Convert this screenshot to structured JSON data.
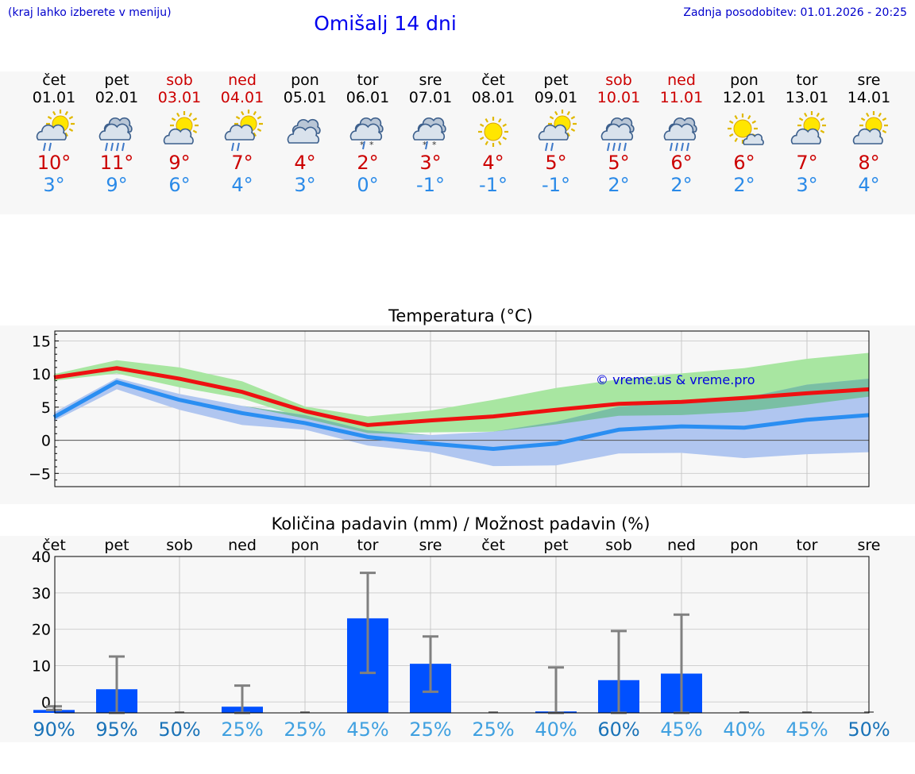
{
  "header": {
    "hint": "(kraj lahko izberete v meniju)",
    "title": "Omišalj 14 dni",
    "updated": "Zadnja posodobitev: 01.01.2026 - 20:25"
  },
  "colors": {
    "weekday": "#000000",
    "weekend": "#cc0000",
    "tmax": "#cc0000",
    "tmin": "#2a8ae8",
    "max_band": "#a8e6a1",
    "min_band": "#b0c6f0",
    "overlap_band": "#7abfa4",
    "max_line": "#ee1111",
    "min_line": "#2a8ef2",
    "bar": "#0050ff",
    "errorbar": "#808080"
  },
  "days": [
    {
      "name": "čet",
      "date": "01.01",
      "weekend": false,
      "icon": "sun-cloud-rain-icon",
      "tmax": "10°",
      "tmin": "3°"
    },
    {
      "name": "pet",
      "date": "02.01",
      "weekend": false,
      "icon": "cloud-heavy-rain-icon",
      "tmax": "11°",
      "tmin": "9°"
    },
    {
      "name": "sob",
      "date": "03.01",
      "weekend": true,
      "icon": "sun-cloud-icon",
      "tmax": "9°",
      "tmin": "6°"
    },
    {
      "name": "ned",
      "date": "04.01",
      "weekend": true,
      "icon": "sun-cloud-rain-icon",
      "tmax": "7°",
      "tmin": "4°"
    },
    {
      "name": "pon",
      "date": "05.01",
      "weekend": false,
      "icon": "cloudy-icon",
      "tmax": "4°",
      "tmin": "3°"
    },
    {
      "name": "tor",
      "date": "06.01",
      "weekend": false,
      "icon": "cloud-sleet-icon",
      "tmax": "2°",
      "tmin": "0°"
    },
    {
      "name": "sre",
      "date": "07.01",
      "weekend": false,
      "icon": "cloud-sleet-icon",
      "tmax": "3°",
      "tmin": "-1°"
    },
    {
      "name": "čet",
      "date": "08.01",
      "weekend": false,
      "icon": "sun-icon",
      "tmax": "4°",
      "tmin": "-1°"
    },
    {
      "name": "pet",
      "date": "09.01",
      "weekend": false,
      "icon": "sun-cloud-rain-icon",
      "tmax": "5°",
      "tmin": "-1°"
    },
    {
      "name": "sob",
      "date": "10.01",
      "weekend": true,
      "icon": "cloud-heavy-rain-icon",
      "tmax": "5°",
      "tmin": "2°"
    },
    {
      "name": "ned",
      "date": "11.01",
      "weekend": true,
      "icon": "cloud-heavy-rain-icon",
      "tmax": "6°",
      "tmin": "2°"
    },
    {
      "name": "pon",
      "date": "12.01",
      "weekend": false,
      "icon": "sun-small-cloud-icon",
      "tmax": "6°",
      "tmin": "2°"
    },
    {
      "name": "tor",
      "date": "13.01",
      "weekend": false,
      "icon": "sun-cloud-icon",
      "tmax": "7°",
      "tmin": "3°"
    },
    {
      "name": "sre",
      "date": "14.01",
      "weekend": false,
      "icon": "sun-cloud-icon",
      "tmax": "8°",
      "tmin": "4°"
    }
  ],
  "chart_data": [
    {
      "type": "line",
      "title": "Temperatura (°C)",
      "watermark": "© vreme.us & vreme.pro",
      "xlabel": "",
      "ylabel": "",
      "ylim": [
        -7,
        16.5
      ],
      "yticks": [
        15,
        10,
        5,
        0,
        -5
      ],
      "ytick_labels": [
        "15",
        "10",
        "5",
        "0",
        "−5"
      ],
      "grid": true,
      "x": [
        1,
        2,
        3,
        4,
        5,
        6,
        7,
        8,
        9,
        10,
        11,
        12,
        13,
        14
      ],
      "series": [
        {
          "name": "max",
          "values": [
            9.5,
            10.9,
            9.3,
            7.3,
            4.4,
            2.3,
            3.0,
            3.6,
            4.6,
            5.5,
            5.8,
            6.4,
            7.1,
            7.7
          ]
        },
        {
          "name": "min",
          "values": [
            3.5,
            8.8,
            6.1,
            4.1,
            2.6,
            0.5,
            -0.5,
            -1.3,
            -0.5,
            1.6,
            2.1,
            1.9,
            3.1,
            3.8
          ]
        },
        {
          "name": "max-range-low",
          "values": [
            9.0,
            10.1,
            8.0,
            6.3,
            3.3,
            1.1,
            1.2,
            1.3,
            2.4,
            3.7,
            3.8,
            4.3,
            5.4,
            6.6
          ]
        },
        {
          "name": "max-range-high",
          "values": [
            10.0,
            12.1,
            11.0,
            8.9,
            5.1,
            3.6,
            4.5,
            6.1,
            7.9,
            9.2,
            10.1,
            10.9,
            12.3,
            13.2
          ]
        },
        {
          "name": "min-range-low",
          "values": [
            2.9,
            7.7,
            4.6,
            2.3,
            1.6,
            -0.8,
            -1.8,
            -3.9,
            -3.8,
            -2.0,
            -1.9,
            -2.7,
            -2.1,
            -1.8
          ]
        },
        {
          "name": "min-range-high",
          "values": [
            4.2,
            9.4,
            7.0,
            5.2,
            3.8,
            1.5,
            0.8,
            1.3,
            2.8,
            5.1,
            5.8,
            6.4,
            8.4,
            9.3
          ]
        }
      ]
    },
    {
      "type": "bar",
      "title": "Količina padavin (mm) / Možnost padavin (%)",
      "xlabel": "",
      "ylabel": "",
      "ylim": [
        -3,
        40
      ],
      "yticks": [
        40,
        30,
        20,
        10,
        0
      ],
      "ytick_labels": [
        "40",
        "30",
        "20",
        "10",
        "0"
      ],
      "grid": true,
      "categories": [
        "čet",
        "pet",
        "sob",
        "ned",
        "pon",
        "tor",
        "sre",
        "čet",
        "pet",
        "sob",
        "ned",
        "pon",
        "tor",
        "sre"
      ],
      "values": [
        -2.2,
        3.5,
        -3,
        -1.3,
        -3,
        23.0,
        10.5,
        -3,
        -2.6,
        6.0,
        7.8,
        -3,
        -3,
        -3
      ],
      "error_low": [
        -2.2,
        -3,
        -3,
        -3,
        -3,
        8.0,
        2.8,
        -3,
        -3,
        -3,
        -3,
        -3,
        -3,
        -3
      ],
      "error_high": [
        -1.2,
        12.5,
        -3,
        4.5,
        -3,
        35.5,
        18.0,
        -3,
        9.5,
        19.5,
        24.0,
        -3,
        -3,
        -3
      ],
      "chance": [
        "90%",
        "95%",
        "50%",
        "25%",
        "25%",
        "45%",
        "25%",
        "25%",
        "40%",
        "60%",
        "45%",
        "40%",
        "45%",
        "50%"
      ],
      "chance_colors": [
        "#1a73b8",
        "#1a73b8",
        "#1a73b8",
        "#3fa0e0",
        "#3fa0e0",
        "#3fa0e0",
        "#3fa0e0",
        "#3fa0e0",
        "#3fa0e0",
        "#1a73b8",
        "#3fa0e0",
        "#3fa0e0",
        "#3fa0e0",
        "#1a73b8"
      ]
    }
  ]
}
